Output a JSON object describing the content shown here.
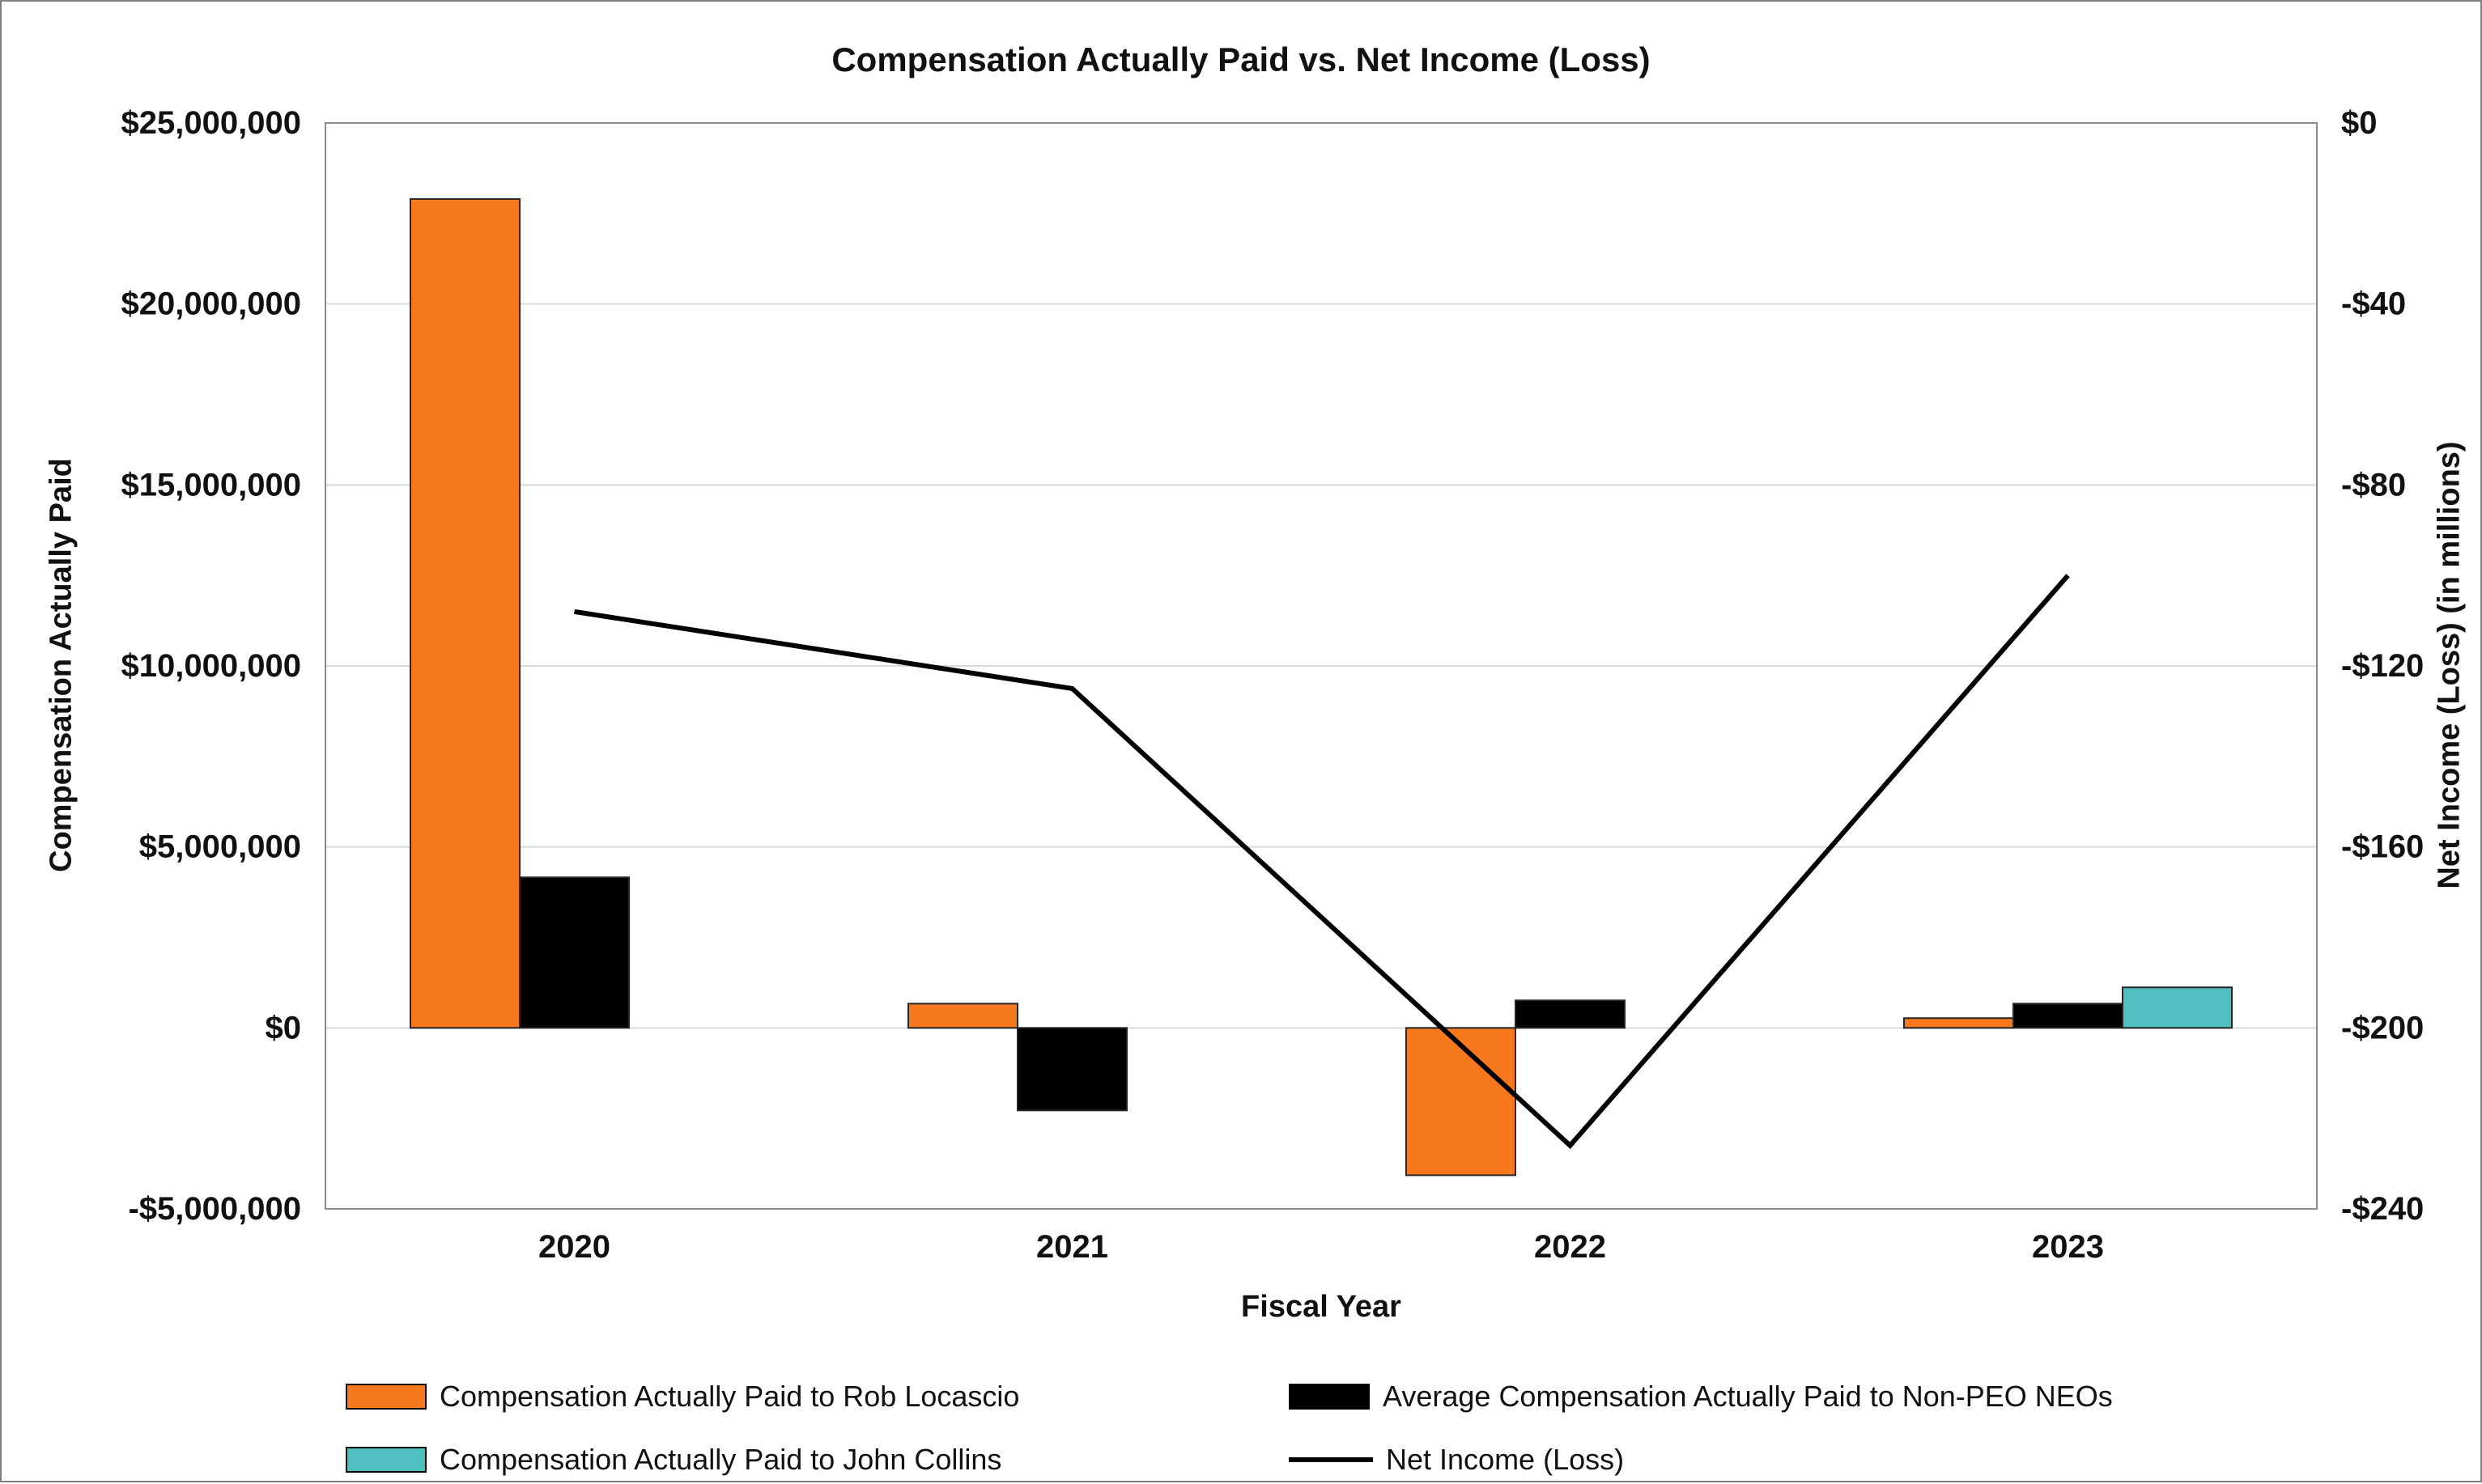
{
  "chart_data": {
    "type": "bar",
    "title": "Compensation Actually Paid vs. Net Income (Loss)",
    "categories": [
      "2020",
      "2021",
      "2022",
      "2023"
    ],
    "bar_series": [
      {
        "name": "Compensation Actually Paid to Rob Locascio",
        "color": "#F8791D",
        "values": [
          22900000,
          670000,
          -4070000,
          270000
        ]
      },
      {
        "name": "Average Compensation Actually Paid to Non-PEO NEOs",
        "color": "#000000",
        "values": [
          4160000,
          -2280000,
          760000,
          670000
        ]
      },
      {
        "name": "Compensation Actually Paid to John Collins",
        "color": "#4FBFC0",
        "values": [
          null,
          null,
          null,
          1120000
        ]
      }
    ],
    "line_series": {
      "name": "Net Income (Loss)",
      "color": "#000000",
      "axis": "right",
      "values": [
        -108,
        -125,
        -226,
        -100
      ]
    },
    "x_axis": {
      "label": "Fiscal Year"
    },
    "left_axis": {
      "label": "Compensation Actually Paid",
      "min": -5000000,
      "max": 25000000,
      "step": 5000000,
      "ticks": [
        "$25,000,000",
        "$20,000,000",
        "$15,000,000",
        "$10,000,000",
        "$5,000,000",
        "$0",
        "-$5,000,000"
      ]
    },
    "right_axis": {
      "label": "Net Income (Loss) (in millions)",
      "min": -240,
      "max": 0,
      "step": 40,
      "ticks": [
        "$0",
        "-$40",
        "-$80",
        "-$120",
        "-$160",
        "-$200",
        "-$240"
      ]
    },
    "grid": {
      "on": true,
      "color": "#d9d9d9",
      "border_color": "#8c8c8c"
    },
    "legend_position": "bottom"
  }
}
